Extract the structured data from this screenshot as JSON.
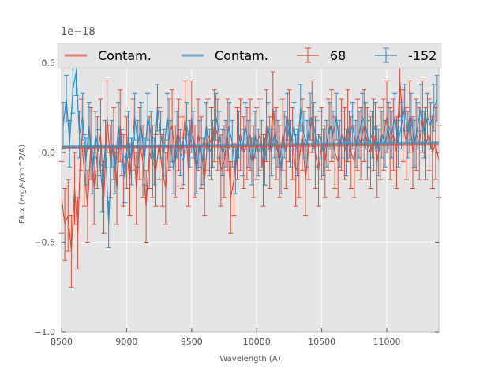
{
  "chart_data": {
    "type": "line",
    "xlabel": "Wavelength (A)",
    "ylabel": "Flux (erg/s/cm^2/A)",
    "y_offset_label": "1e−18",
    "xlim": [
      8500,
      11400
    ],
    "ylim": [
      -1.0,
      0.6
    ],
    "xticks": [
      8500,
      9000,
      9500,
      10000,
      10500,
      11000
    ],
    "xtick_labels": [
      "8500",
      "9000",
      "9500",
      "10000",
      "10500",
      "11000"
    ],
    "yticks": [
      -1.0,
      -0.5,
      0.0,
      0.5
    ],
    "ytick_labels": [
      "−1.0",
      "−0.5",
      "0.0",
      "0.5"
    ],
    "grid": true,
    "legend_position": "top",
    "colors": {
      "red": "#e24a33",
      "blue": "#348abd",
      "background": "#e5e5e5"
    },
    "legend": [
      {
        "label": "Contam.",
        "kind": "line",
        "color": "#e24a33"
      },
      {
        "label": "Contam.",
        "kind": "line",
        "color": "#348abd"
      },
      {
        "label": "68",
        "kind": "errorbar",
        "color": "#e24a33"
      },
      {
        "label": "-152",
        "kind": "errorbar",
        "color": "#348abd"
      }
    ],
    "series": [
      {
        "name": "Contam.",
        "style": "contam",
        "color": "#e24a33",
        "x": [
          8500,
          11400
        ],
        "y": [
          0.028,
          0.045
        ]
      },
      {
        "name": "Contam.",
        "style": "contam",
        "color": "#348abd",
        "x": [
          8500,
          11400
        ],
        "y": [
          0.032,
          0.055
        ]
      },
      {
        "name": "68",
        "style": "errorbar",
        "color": "#e24a33",
        "x": [
          8500,
          8525,
          8550,
          8575,
          8600,
          8625,
          8650,
          8675,
          8700,
          8725,
          8750,
          8775,
          8800,
          8825,
          8850,
          8875,
          8900,
          8925,
          8950,
          8975,
          9000,
          9025,
          9050,
          9075,
          9100,
          9125,
          9150,
          9175,
          9200,
          9225,
          9250,
          9275,
          9300,
          9325,
          9350,
          9375,
          9400,
          9425,
          9450,
          9475,
          9500,
          9525,
          9550,
          9575,
          9600,
          9625,
          9650,
          9675,
          9700,
          9725,
          9750,
          9775,
          9800,
          9825,
          9850,
          9875,
          9900,
          9925,
          9950,
          9975,
          10000,
          10025,
          10050,
          10075,
          10100,
          10125,
          10150,
          10175,
          10200,
          10225,
          10250,
          10275,
          10300,
          10325,
          10350,
          10375,
          10400,
          10425,
          10450,
          10475,
          10500,
          10525,
          10550,
          10575,
          10600,
          10625,
          10650,
          10675,
          10700,
          10725,
          10750,
          10775,
          10800,
          10825,
          10850,
          10875,
          10900,
          10925,
          10950,
          10975,
          11000,
          11025,
          11050,
          11075,
          11100,
          11125,
          11150,
          11175,
          11200,
          11225,
          11250,
          11275,
          11300,
          11325,
          11350,
          11375,
          11400
        ],
        "y": [
          -0.25,
          -0.4,
          -0.35,
          -0.55,
          -0.2,
          -0.45,
          0.1,
          -0.1,
          -0.3,
          0.05,
          -0.2,
          0.0,
          0.1,
          -0.25,
          0.2,
          -0.05,
          0.05,
          -0.2,
          0.15,
          -0.1,
          0.0,
          -0.15,
          0.1,
          -0.2,
          0.05,
          -0.05,
          -0.3,
          0.0,
          -0.05,
          -0.1,
          0.05,
          -0.1,
          -0.2,
          0.1,
          0.15,
          -0.05,
          0.1,
          0.0,
          0.2,
          -0.1,
          0.2,
          -0.05,
          0.1,
          0.0,
          -0.15,
          0.1,
          0.05,
          0.15,
          0.1,
          -0.1,
          -0.05,
          0.1,
          -0.25,
          -0.15,
          0.05,
          0.1,
          0.0,
          0.05,
          0.1,
          -0.05,
          0.05,
          0.1,
          -0.1,
          0.15,
          0.0,
          0.25,
          0.05,
          -0.05,
          0.1,
          0.0,
          0.15,
          0.05,
          -0.1,
          -0.05,
          0.1,
          -0.15,
          0.05,
          0.2,
          0.0,
          -0.1,
          0.05,
          -0.05,
          0.1,
          0.15,
          0.0,
          -0.05,
          0.1,
          0.05,
          0.15,
          0.0,
          -0.05,
          0.1,
          0.05,
          0.15,
          0.05,
          0.0,
          0.1,
          -0.05,
          0.05,
          0.1,
          0.2,
          0.05,
          0.1,
          0.0,
          0.4,
          0.15,
          0.05,
          0.2,
          0.0,
          0.1,
          0.05,
          0.2,
          0.05,
          0.1,
          0.0,
          0.05,
          -0.05
        ],
        "yerr": 0.2
      },
      {
        "name": "-152",
        "style": "errorbar",
        "color": "#348abd",
        "x": [
          8512,
          8537,
          8562,
          8587,
          8612,
          8637,
          8662,
          8687,
          8712,
          8737,
          8762,
          8787,
          8812,
          8837,
          8862,
          8887,
          8912,
          8937,
          8962,
          8987,
          9012,
          9037,
          9062,
          9087,
          9112,
          9137,
          9162,
          9187,
          9212,
          9237,
          9262,
          9287,
          9312,
          9337,
          9362,
          9387,
          9412,
          9437,
          9462,
          9487,
          9512,
          9537,
          9562,
          9587,
          9612,
          9637,
          9662,
          9687,
          9712,
          9737,
          9762,
          9787,
          9812,
          9837,
          9862,
          9887,
          9912,
          9937,
          9962,
          9987,
          10012,
          10037,
          10062,
          10087,
          10112,
          10137,
          10162,
          10187,
          10212,
          10237,
          10262,
          10287,
          10312,
          10337,
          10362,
          10387,
          10412,
          10437,
          10462,
          10487,
          10512,
          10537,
          10562,
          10587,
          10612,
          10637,
          10662,
          10687,
          10712,
          10737,
          10762,
          10787,
          10812,
          10837,
          10862,
          10887,
          10912,
          10937,
          10962,
          10987,
          11012,
          11037,
          11062,
          11087,
          11112,
          11137,
          11162,
          11187,
          11212,
          11237,
          11262,
          11287,
          11312,
          11337,
          11362,
          11387
        ],
        "y": [
          0.15,
          0.3,
          0.05,
          0.35,
          0.45,
          0.1,
          0.2,
          -0.05,
          0.15,
          -0.1,
          0.1,
          0.0,
          -0.2,
          0.05,
          -0.4,
          0.05,
          -0.1,
          0.15,
          0.0,
          -0.15,
          0.1,
          -0.05,
          0.2,
          0.05,
          0.15,
          -0.05,
          0.2,
          0.1,
          -0.05,
          0.25,
          0.1,
          0.0,
          0.2,
          0.05,
          -0.1,
          0.1,
          0.0,
          -0.05,
          0.15,
          0.05,
          0.1,
          -0.1,
          0.05,
          -0.05,
          0.15,
          0.0,
          0.05,
          0.2,
          0.1,
          0.0,
          0.05,
          0.15,
          0.05,
          -0.1,
          0.1,
          0.0,
          0.15,
          0.05,
          -0.05,
          0.1,
          0.0,
          0.05,
          -0.05,
          0.15,
          0.0,
          0.1,
          0.05,
          -0.1,
          0.1,
          0.2,
          0.05,
          0.15,
          0.0,
          0.25,
          0.1,
          0.05,
          0.2,
          0.15,
          0.05,
          0.1,
          0.0,
          0.05,
          0.15,
          0.1,
          0.2,
          0.05,
          0.1,
          0.0,
          0.1,
          0.15,
          0.05,
          0.1,
          0.2,
          0.15,
          0.05,
          0.1,
          0.15,
          0.0,
          0.1,
          0.05,
          0.15,
          0.1,
          0.2,
          0.05,
          0.15,
          0.25,
          0.1,
          0.2,
          0.05,
          0.15,
          0.25,
          0.1,
          0.2,
          0.15,
          0.25,
          0.3
        ],
        "yerr": 0.13
      }
    ]
  }
}
